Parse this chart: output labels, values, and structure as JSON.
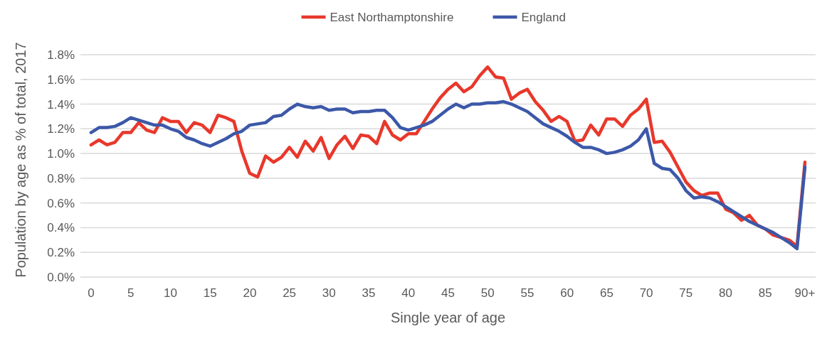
{
  "chart_data": {
    "type": "line",
    "xlabel": "Single year of age",
    "ylabel": "Population by age as % of total, 2017",
    "categories": [
      "0",
      null,
      null,
      null,
      null,
      "5",
      null,
      null,
      null,
      null,
      "10",
      null,
      null,
      null,
      null,
      "15",
      null,
      null,
      null,
      null,
      "20",
      null,
      null,
      null,
      null,
      "25",
      null,
      null,
      null,
      null,
      "30",
      null,
      null,
      null,
      null,
      "35",
      null,
      null,
      null,
      null,
      "40",
      null,
      null,
      null,
      null,
      "45",
      null,
      null,
      null,
      null,
      "50",
      null,
      null,
      null,
      null,
      "55",
      null,
      null,
      null,
      null,
      "60",
      null,
      null,
      null,
      null,
      "65",
      null,
      null,
      null,
      null,
      "70",
      null,
      null,
      null,
      null,
      "75",
      null,
      null,
      null,
      null,
      "80",
      null,
      null,
      null,
      null,
      "85",
      null,
      null,
      null,
      null,
      "90+"
    ],
    "series": [
      {
        "name": "East Northamptonshire",
        "color": "#e8382b",
        "values": [
          1.07,
          1.11,
          1.07,
          1.09,
          1.17,
          1.17,
          1.25,
          1.19,
          1.17,
          1.29,
          1.26,
          1.26,
          1.17,
          1.25,
          1.23,
          1.17,
          1.31,
          1.29,
          1.26,
          1.02,
          0.84,
          0.81,
          0.98,
          0.93,
          0.97,
          1.05,
          0.97,
          1.1,
          1.02,
          1.13,
          0.96,
          1.07,
          1.14,
          1.04,
          1.15,
          1.14,
          1.08,
          1.26,
          1.15,
          1.11,
          1.16,
          1.16,
          1.26,
          1.36,
          1.45,
          1.52,
          1.57,
          1.5,
          1.54,
          1.63,
          1.7,
          1.62,
          1.61,
          1.44,
          1.49,
          1.52,
          1.42,
          1.35,
          1.26,
          1.3,
          1.26,
          1.1,
          1.11,
          1.23,
          1.15,
          1.28,
          1.28,
          1.22,
          1.31,
          1.36,
          1.44,
          1.09,
          1.1,
          1.01,
          0.89,
          0.77,
          0.7,
          0.66,
          0.68,
          0.68,
          0.55,
          0.52,
          0.46,
          0.5,
          0.42,
          0.39,
          0.34,
          0.32,
          0.3,
          0.25,
          0.93
        ]
      },
      {
        "name": "England",
        "color": "#3c58a8",
        "values": [
          1.17,
          1.21,
          1.21,
          1.22,
          1.25,
          1.29,
          1.27,
          1.25,
          1.23,
          1.23,
          1.2,
          1.18,
          1.13,
          1.11,
          1.08,
          1.06,
          1.09,
          1.12,
          1.16,
          1.18,
          1.23,
          1.24,
          1.25,
          1.3,
          1.31,
          1.36,
          1.4,
          1.38,
          1.37,
          1.38,
          1.35,
          1.36,
          1.36,
          1.33,
          1.34,
          1.34,
          1.35,
          1.35,
          1.29,
          1.21,
          1.19,
          1.21,
          1.23,
          1.26,
          1.31,
          1.36,
          1.4,
          1.37,
          1.4,
          1.4,
          1.41,
          1.41,
          1.42,
          1.4,
          1.37,
          1.34,
          1.29,
          1.24,
          1.21,
          1.18,
          1.14,
          1.09,
          1.05,
          1.05,
          1.03,
          1.0,
          1.01,
          1.03,
          1.06,
          1.11,
          1.2,
          0.92,
          0.88,
          0.87,
          0.8,
          0.7,
          0.64,
          0.65,
          0.64,
          0.61,
          0.57,
          0.53,
          0.49,
          0.45,
          0.42,
          0.39,
          0.36,
          0.32,
          0.28,
          0.23,
          0.89
        ]
      }
    ],
    "ylim": [
      0,
      1.8
    ],
    "yticks": [
      {
        "value": 0,
        "label": "0.0%"
      },
      {
        "value": 0.2,
        "label": "0.2%"
      },
      {
        "value": 0.4,
        "label": "0.4%"
      },
      {
        "value": 0.6,
        "label": "0.6%"
      },
      {
        "value": 0.8,
        "label": "0.8%"
      },
      {
        "value": 1.0,
        "label": "1.0%"
      },
      {
        "value": 1.2,
        "label": "1.2%"
      },
      {
        "value": 1.4,
        "label": "1.4%"
      },
      {
        "value": 1.6,
        "label": "1.6%"
      },
      {
        "value": 1.8,
        "label": "1.8%"
      }
    ],
    "grid": "y",
    "legend": "top",
    "marker": "none",
    "line_style": "solid"
  }
}
